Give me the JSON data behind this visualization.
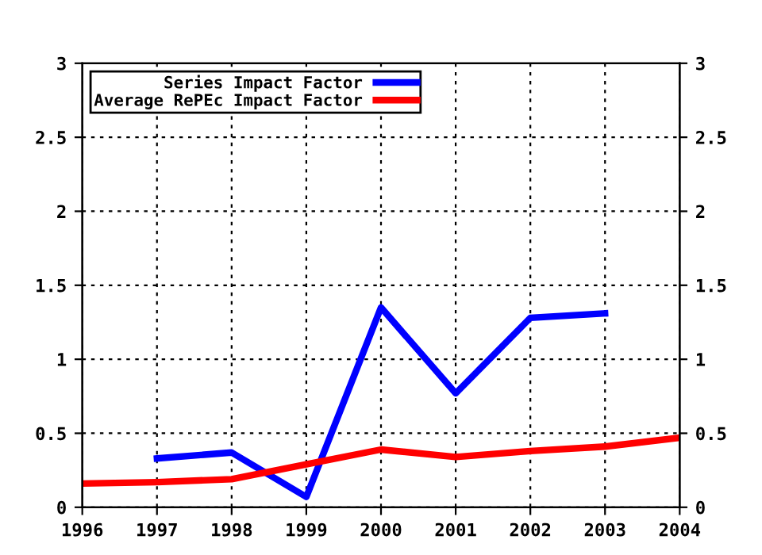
{
  "chart_data": {
    "type": "line",
    "x": [
      1996,
      1997,
      1998,
      1999,
      2000,
      2001,
      2002,
      2003,
      2004
    ],
    "series": [
      {
        "name": "Series Impact Factor",
        "color": "#0000ff",
        "values": [
          null,
          0.33,
          0.37,
          0.07,
          1.35,
          0.77,
          1.28,
          1.31,
          null
        ]
      },
      {
        "name": "Average RePEc Impact Factor",
        "color": "#ff0000",
        "values": [
          0.16,
          0.17,
          0.19,
          0.29,
          0.39,
          0.34,
          0.38,
          0.41,
          0.47
        ]
      }
    ],
    "xlim": [
      1996,
      2004
    ],
    "xticks": [
      1996,
      1997,
      1998,
      1999,
      2000,
      2001,
      2002,
      2003,
      2004
    ],
    "ylim": [
      0,
      3
    ],
    "yticks": [
      0,
      0.5,
      1,
      1.5,
      2,
      2.5,
      3
    ],
    "y2lim": [
      0,
      3
    ],
    "y2ticks": [
      0,
      0.5,
      1,
      1.5,
      2,
      2.5,
      3
    ],
    "grid": true,
    "legend": "top left",
    "line_style": "solid",
    "marker": "none"
  }
}
